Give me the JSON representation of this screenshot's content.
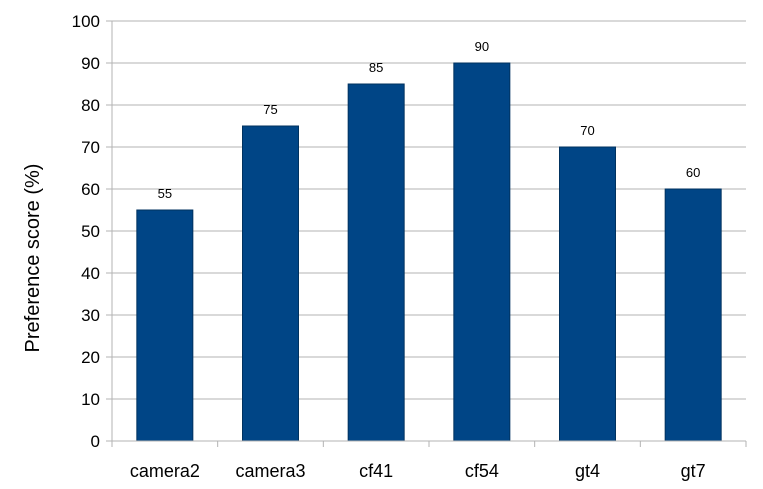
{
  "chart_data": {
    "type": "bar",
    "title": "",
    "xlabel": "",
    "ylabel": "Preference score (%)",
    "categories": [
      "camera2",
      "camera3",
      "cf41",
      "cf54",
      "gt4",
      "gt7"
    ],
    "values": [
      55,
      75,
      85,
      90,
      70,
      60
    ],
    "data_labels": [
      "55",
      "75",
      "85",
      "90",
      "70",
      "60"
    ],
    "ylim": [
      0,
      100
    ],
    "yticks": [
      "0",
      "10",
      "20",
      "30",
      "40",
      "50",
      "60",
      "70",
      "80",
      "90",
      "100"
    ],
    "grid": true,
    "legend": "none",
    "bar_color": "#004586",
    "grid_color": "#b3b3b3"
  }
}
